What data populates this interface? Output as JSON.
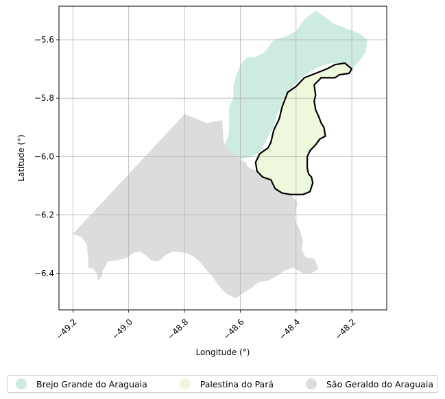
{
  "chart_data": {
    "type": "choropleth-map",
    "xlabel": "Longitude (°)",
    "ylabel": "Latitude (°)",
    "xlim": [
      -49.25,
      -48.075
    ],
    "ylim": [
      -6.525,
      -5.485
    ],
    "xticks": [
      -49.2,
      -49.0,
      -48.8,
      -48.6,
      -48.4,
      -48.2
    ],
    "xtick_labels": [
      "−49.2",
      "−49.0",
      "−48.8",
      "−48.6",
      "−48.4",
      "−48.2"
    ],
    "yticks": [
      -5.6,
      -5.8,
      -6.0,
      -6.2,
      -6.4
    ],
    "ytick_labels": [
      "−5.6",
      "−5.8",
      "−6.0",
      "−6.2",
      "−6.4"
    ],
    "grid": true,
    "legend_position": "bottom",
    "highlighted_region": "Palestina do Pará",
    "regions": [
      {
        "name": "São Geraldo do Araguaia",
        "color": "#dcdcdc",
        "boundary": [
          [
            -48.8,
            -5.855
          ],
          [
            -48.72,
            -5.885
          ],
          [
            -48.665,
            -5.875
          ],
          [
            -48.66,
            -5.95
          ],
          [
            -48.635,
            -5.985
          ],
          [
            -48.6,
            -6.01
          ],
          [
            -48.58,
            -6.02
          ],
          [
            -48.575,
            -6.035
          ],
          [
            -48.55,
            -6.045
          ],
          [
            -48.53,
            -6.065
          ],
          [
            -48.49,
            -6.08
          ],
          [
            -48.475,
            -6.11
          ],
          [
            -48.45,
            -6.125
          ],
          [
            -48.42,
            -6.13
          ],
          [
            -48.395,
            -6.155
          ],
          [
            -48.4,
            -6.18
          ],
          [
            -48.405,
            -6.215
          ],
          [
            -48.385,
            -6.255
          ],
          [
            -48.375,
            -6.29
          ],
          [
            -48.38,
            -6.32
          ],
          [
            -48.365,
            -6.345
          ],
          [
            -48.335,
            -6.35
          ],
          [
            -48.325,
            -6.37
          ],
          [
            -48.32,
            -6.385
          ],
          [
            -48.345,
            -6.4
          ],
          [
            -48.375,
            -6.4
          ],
          [
            -48.41,
            -6.38
          ],
          [
            -48.44,
            -6.39
          ],
          [
            -48.47,
            -6.41
          ],
          [
            -48.5,
            -6.425
          ],
          [
            -48.535,
            -6.43
          ],
          [
            -48.56,
            -6.45
          ],
          [
            -48.585,
            -6.465
          ],
          [
            -48.615,
            -6.485
          ],
          [
            -48.65,
            -6.47
          ],
          [
            -48.68,
            -6.44
          ],
          [
            -48.7,
            -6.41
          ],
          [
            -48.72,
            -6.39
          ],
          [
            -48.745,
            -6.36
          ],
          [
            -48.77,
            -6.34
          ],
          [
            -48.795,
            -6.33
          ],
          [
            -48.84,
            -6.325
          ],
          [
            -48.865,
            -6.335
          ],
          [
            -48.895,
            -6.36
          ],
          [
            -48.92,
            -6.355
          ],
          [
            -48.935,
            -6.34
          ],
          [
            -48.96,
            -6.325
          ],
          [
            -48.985,
            -6.33
          ],
          [
            -49.0,
            -6.345
          ],
          [
            -49.04,
            -6.355
          ],
          [
            -49.075,
            -6.36
          ],
          [
            -49.095,
            -6.395
          ],
          [
            -49.095,
            -6.41
          ],
          [
            -49.11,
            -6.425
          ],
          [
            -49.115,
            -6.4
          ],
          [
            -49.125,
            -6.385
          ],
          [
            -49.145,
            -6.38
          ],
          [
            -49.145,
            -6.355
          ],
          [
            -49.15,
            -6.3
          ],
          [
            -49.17,
            -6.275
          ],
          [
            -49.2,
            -6.265
          ]
        ]
      },
      {
        "name": "Brejo Grande do Araguaia",
        "color": "#cdebdf",
        "boundary": [
          [
            -48.33,
            -5.5
          ],
          [
            -48.3,
            -5.52
          ],
          [
            -48.265,
            -5.545
          ],
          [
            -48.225,
            -5.56
          ],
          [
            -48.195,
            -5.57
          ],
          [
            -48.17,
            -5.58
          ],
          [
            -48.145,
            -5.6
          ],
          [
            -48.15,
            -5.64
          ],
          [
            -48.17,
            -5.67
          ],
          [
            -48.2,
            -5.7
          ],
          [
            -48.235,
            -5.68
          ],
          [
            -48.27,
            -5.68
          ],
          [
            -48.31,
            -5.69
          ],
          [
            -48.35,
            -5.71
          ],
          [
            -48.38,
            -5.73
          ],
          [
            -48.405,
            -5.75
          ],
          [
            -48.42,
            -5.77
          ],
          [
            -48.44,
            -5.79
          ],
          [
            -48.455,
            -5.83
          ],
          [
            -48.47,
            -5.86
          ],
          [
            -48.48,
            -5.9
          ],
          [
            -48.5,
            -5.93
          ],
          [
            -48.515,
            -5.96
          ],
          [
            -48.53,
            -5.985
          ],
          [
            -48.56,
            -6.0
          ],
          [
            -48.6,
            -6.01
          ],
          [
            -48.635,
            -5.985
          ],
          [
            -48.655,
            -5.96
          ],
          [
            -48.64,
            -5.92
          ],
          [
            -48.64,
            -5.86
          ],
          [
            -48.64,
            -5.83
          ],
          [
            -48.625,
            -5.8
          ],
          [
            -48.625,
            -5.76
          ],
          [
            -48.61,
            -5.71
          ],
          [
            -48.595,
            -5.68
          ],
          [
            -48.575,
            -5.66
          ],
          [
            -48.545,
            -5.66
          ],
          [
            -48.51,
            -5.64
          ],
          [
            -48.48,
            -5.6
          ],
          [
            -48.44,
            -5.59
          ],
          [
            -48.4,
            -5.57
          ],
          [
            -48.37,
            -5.53
          ]
        ]
      },
      {
        "name": "Palestina do Pará",
        "color": "#eef8dc",
        "boundary": [
          [
            -48.4,
            -5.76
          ],
          [
            -48.37,
            -5.73
          ],
          [
            -48.33,
            -5.715
          ],
          [
            -48.29,
            -5.7
          ],
          [
            -48.26,
            -5.685
          ],
          [
            -48.225,
            -5.68
          ],
          [
            -48.2,
            -5.7
          ],
          [
            -48.21,
            -5.715
          ],
          [
            -48.245,
            -5.72
          ],
          [
            -48.26,
            -5.73
          ],
          [
            -48.31,
            -5.73
          ],
          [
            -48.335,
            -5.755
          ],
          [
            -48.33,
            -5.79
          ],
          [
            -48.335,
            -5.81
          ],
          [
            -48.33,
            -5.84
          ],
          [
            -48.32,
            -5.86
          ],
          [
            -48.31,
            -5.885
          ],
          [
            -48.3,
            -5.9
          ],
          [
            -48.295,
            -5.93
          ],
          [
            -48.315,
            -5.94
          ],
          [
            -48.33,
            -5.96
          ],
          [
            -48.35,
            -5.98
          ],
          [
            -48.36,
            -6.0
          ],
          [
            -48.36,
            -6.04
          ],
          [
            -48.355,
            -6.06
          ],
          [
            -48.345,
            -6.07
          ],
          [
            -48.34,
            -6.09
          ],
          [
            -48.35,
            -6.12
          ],
          [
            -48.375,
            -6.13
          ],
          [
            -48.42,
            -6.13
          ],
          [
            -48.45,
            -6.125
          ],
          [
            -48.475,
            -6.11
          ],
          [
            -48.49,
            -6.08
          ],
          [
            -48.52,
            -6.07
          ],
          [
            -48.54,
            -6.05
          ],
          [
            -48.545,
            -6.02
          ],
          [
            -48.53,
            -5.99
          ],
          [
            -48.5,
            -5.97
          ],
          [
            -48.49,
            -5.95
          ],
          [
            -48.48,
            -5.91
          ],
          [
            -48.46,
            -5.87
          ],
          [
            -48.45,
            -5.83
          ],
          [
            -48.43,
            -5.78
          ]
        ]
      }
    ]
  },
  "legend": {
    "items": [
      {
        "label": "Brejo Grande do Araguaia",
        "color": "#cdebdf"
      },
      {
        "label": "Palestina do Pará",
        "color": "#eef8dc"
      },
      {
        "label": "São Geraldo do Araguaia",
        "color": "#dcdcdc"
      }
    ]
  }
}
